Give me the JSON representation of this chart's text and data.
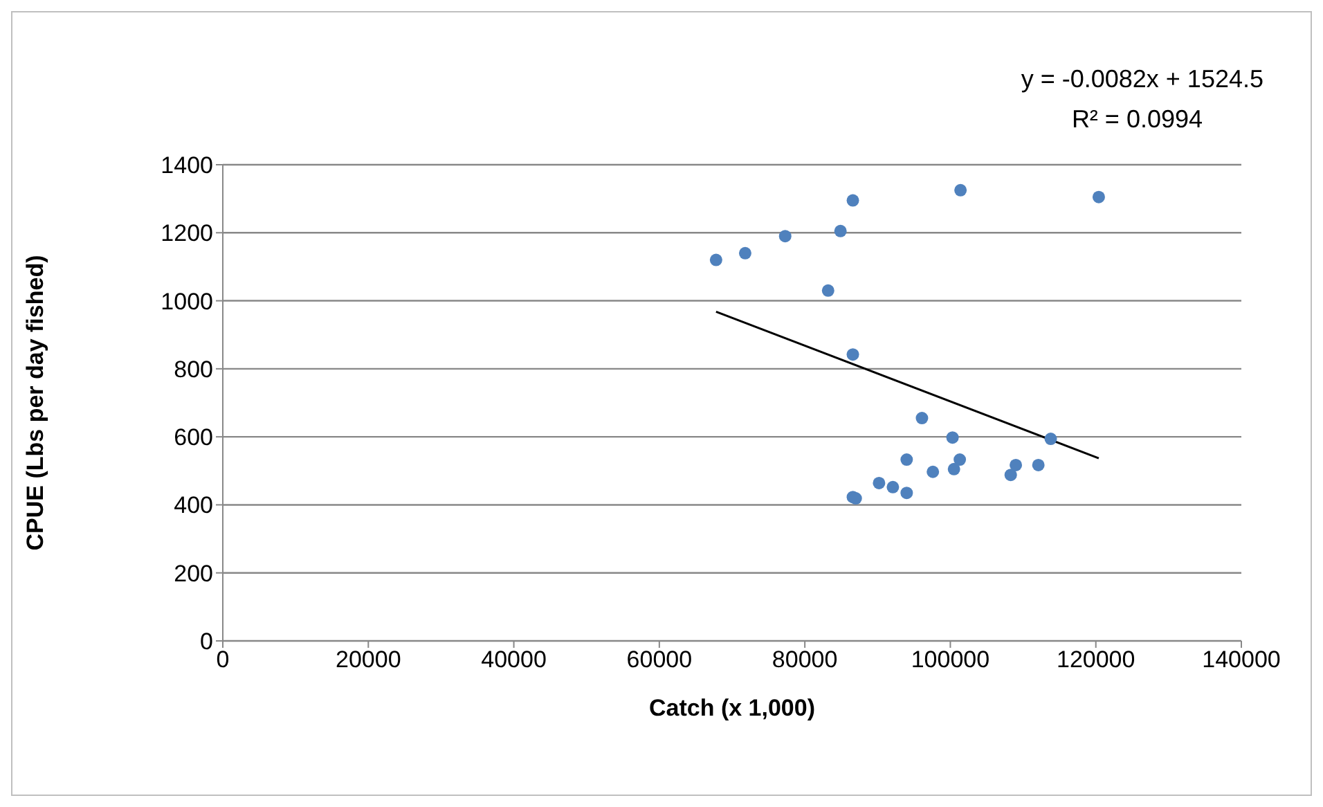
{
  "chart_data": {
    "type": "scatter",
    "xlabel": "Catch (x 1,000)",
    "ylabel": "CPUE (Lbs per day fished)",
    "annotations": [
      "y = -0.0082x + 1524.5",
      "R² = 0.0994"
    ],
    "xlim": [
      0,
      140000
    ],
    "xticks": [
      0,
      20000,
      40000,
      60000,
      80000,
      100000,
      120000,
      140000
    ],
    "ylim": [
      0,
      1400
    ],
    "yticks": [
      0,
      200,
      400,
      600,
      800,
      1000,
      1200,
      1400
    ],
    "grid": "y",
    "series": [
      {
        "color": "#4f81bd",
        "marker": "circle",
        "x": [
          67800,
          71800,
          77300,
          84900,
          86600,
          101400,
          120400,
          83200,
          86600,
          96100,
          100300,
          101300,
          94000,
          90200,
          92100,
          94000,
          97600,
          100500,
          86600,
          87000,
          108300,
          109000,
          112100,
          113800
        ],
        "values": [
          1120,
          1140,
          1190,
          1205,
          1295,
          1325,
          1305,
          1030,
          842,
          655,
          598,
          533,
          533,
          464,
          452,
          435,
          497,
          505,
          423,
          419,
          488,
          517,
          517,
          594
        ]
      },
      {
        "type": "line",
        "color": "#000000",
        "x": [
          67800,
          120400
        ],
        "values": [
          968,
          537
        ]
      }
    ]
  }
}
